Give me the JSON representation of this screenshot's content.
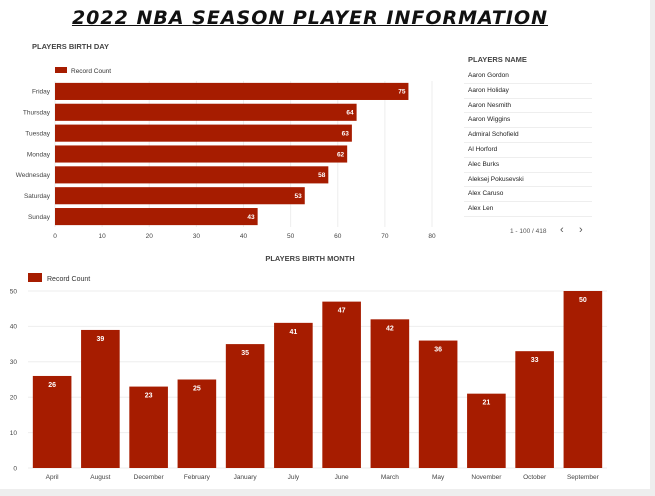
{
  "page": {
    "title": "2022 NBA SEASON PLAYER INFORMATION"
  },
  "colors": {
    "bar": "#a61c00",
    "grid": "#eeeeee",
    "axis_text": "#444444"
  },
  "players_table": {
    "title": "PLAYERS NAME",
    "names": [
      "Aaron Gordon",
      "Aaron Holiday",
      "Aaron Nesmith",
      "Aaron Wiggins",
      "Admiral Schofield",
      "Al Horford",
      "Alec Burks",
      "Aleksej Pokusevski",
      "Alex Caruso",
      "Alex Len"
    ],
    "pagination": "1 - 100 / 418",
    "prev_icon": "chevron-left-icon",
    "next_icon": "chevron-right-icon"
  },
  "chart_data": [
    {
      "type": "bar",
      "orientation": "horizontal",
      "title": "PLAYERS BIRTH DAY",
      "legend": "Record Count",
      "legend_position": "top-left",
      "categories": [
        "Friday",
        "Thursday",
        "Tuesday",
        "Monday",
        "Wednesday",
        "Saturday",
        "Sunday"
      ],
      "values": [
        75,
        64,
        63,
        62,
        58,
        53,
        43
      ],
      "xlim": [
        0,
        80
      ],
      "ticks": [
        0,
        10,
        20,
        30,
        40,
        50,
        60,
        70,
        80
      ],
      "grid": true
    },
    {
      "type": "bar",
      "orientation": "vertical",
      "title": "PLAYERS BIRTH MONTH",
      "legend": "Record Count",
      "legend_position": "top-left",
      "categories": [
        "April",
        "August",
        "December",
        "February",
        "January",
        "July",
        "June",
        "March",
        "May",
        "November",
        "October",
        "September"
      ],
      "values": [
        26,
        39,
        23,
        25,
        35,
        41,
        47,
        42,
        36,
        21,
        33,
        50
      ],
      "ylim": [
        0,
        50
      ],
      "ticks": [
        0,
        10,
        20,
        30,
        40,
        50
      ],
      "grid": true
    }
  ]
}
